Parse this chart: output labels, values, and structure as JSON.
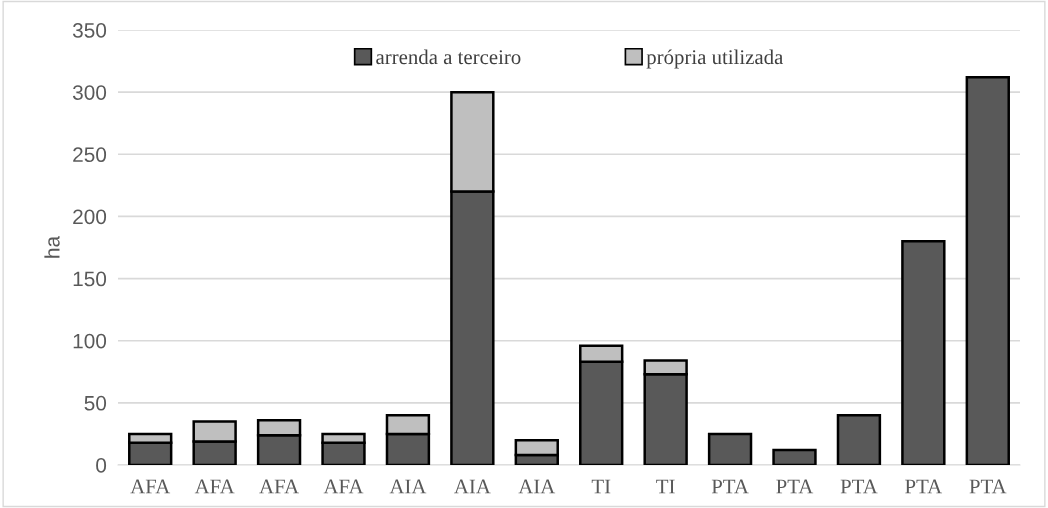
{
  "chart_data": {
    "type": "bar",
    "stacked": true,
    "ylabel": "ha",
    "categories": [
      "AFA",
      "AFA",
      "AFA",
      "AFA",
      "AIA",
      "AIA",
      "AIA",
      "TI",
      "TI",
      "PTA",
      "PTA",
      "PTA",
      "PTA",
      "PTA"
    ],
    "series": [
      {
        "name": "arrenda a terceiro",
        "color": "#595959",
        "values": [
          18,
          19,
          24,
          18,
          25,
          220,
          8,
          83,
          73,
          25,
          12,
          40,
          180,
          312
        ]
      },
      {
        "name": "própria utilizada",
        "color": "#bfbfbf",
        "values": [
          7,
          16,
          12,
          7,
          15,
          80,
          12,
          13,
          11,
          null,
          null,
          null,
          null,
          null
        ]
      }
    ],
    "ylim": [
      0,
      350
    ],
    "yticks": [
      0,
      50,
      100,
      150,
      200,
      250,
      300,
      350
    ],
    "grid": "y",
    "legend": "top"
  }
}
